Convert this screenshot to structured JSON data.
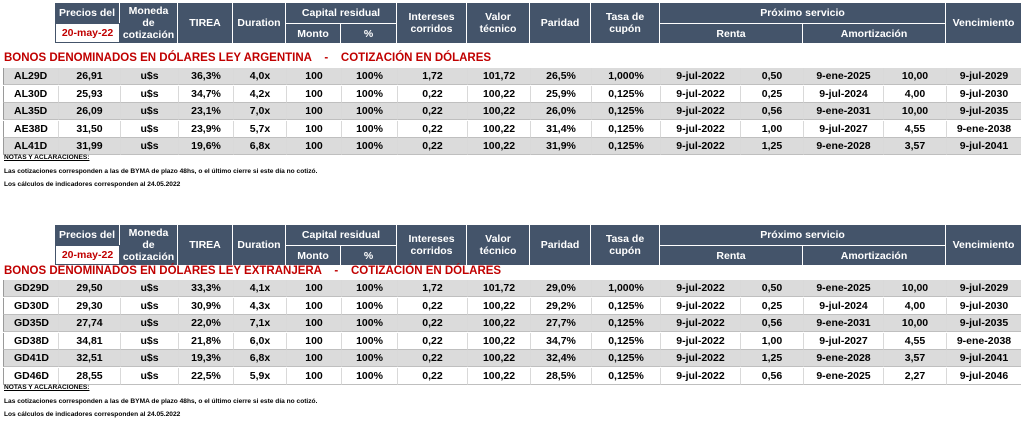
{
  "header": {
    "precios_del": "Precios del",
    "date": "20-may-22",
    "moneda": "Moneda de cotización",
    "tirea": "TIREA",
    "duration": "Duration",
    "capital_residual": "Capital residual",
    "monto": "Monto",
    "pct": "%",
    "intereses": "Intereses corridos",
    "valor_tecnico": "Valor técnico",
    "paridad": "Paridad",
    "tasa_cupon": "Tasa de cupón",
    "proximo_servicio": "Próximo servicio",
    "renta": "Renta",
    "amortizacion": "Amortización",
    "vencimiento": "Vencimiento"
  },
  "sections": [
    {
      "title": "BONOS DENOMINADOS EN DÓLARES LEY ARGENTINA    -    COTIZACIÓN EN DÓLARES",
      "rows": [
        [
          "AL29D",
          "26,91",
          "u$s",
          "36,3%",
          "4,0x",
          "100",
          "100%",
          "1,72",
          "101,72",
          "26,5%",
          "1,000%",
          "9-jul-2022",
          "0,50",
          "9-ene-2025",
          "10,00",
          "9-jul-2029"
        ],
        [
          "AL30D",
          "25,93",
          "u$s",
          "34,7%",
          "4,2x",
          "100",
          "100%",
          "0,22",
          "100,22",
          "25,9%",
          "0,125%",
          "9-jul-2022",
          "0,25",
          "9-jul-2024",
          "4,00",
          "9-jul-2030"
        ],
        [
          "AL35D",
          "26,09",
          "u$s",
          "23,1%",
          "7,0x",
          "100",
          "100%",
          "0,22",
          "100,22",
          "26,0%",
          "0,125%",
          "9-jul-2022",
          "0,56",
          "9-ene-2031",
          "10,00",
          "9-jul-2035"
        ],
        [
          "AE38D",
          "31,50",
          "u$s",
          "23,9%",
          "5,7x",
          "100",
          "100%",
          "0,22",
          "100,22",
          "31,4%",
          "0,125%",
          "9-jul-2022",
          "1,00",
          "9-jul-2027",
          "4,55",
          "9-ene-2038"
        ],
        [
          "AL41D",
          "31,99",
          "u$s",
          "19,6%",
          "6,8x",
          "100",
          "100%",
          "0,22",
          "100,22",
          "31,9%",
          "0,125%",
          "9-jul-2022",
          "1,25",
          "9-ene-2028",
          "3,57",
          "9-jul-2041"
        ]
      ],
      "notes_title": "NOTAS Y ACLARACIONES:",
      "note1": "Las cotizaciones corresponden a las de BYMA de plazo 48hs, o el último cierre si este día no cotizó.",
      "note2": "Los cálculos de indicadores corresponden al 24.05.2022"
    },
    {
      "title": "BONOS DENOMINADOS EN DÓLARES LEY EXTRANJERA    -    COTIZACIÓN EN DÓLARES",
      "rows": [
        [
          "GD29D",
          "29,50",
          "u$s",
          "33,3%",
          "4,1x",
          "100",
          "100%",
          "1,72",
          "101,72",
          "29,0%",
          "1,000%",
          "9-jul-2022",
          "0,50",
          "9-ene-2025",
          "10,00",
          "9-jul-2029"
        ],
        [
          "GD30D",
          "29,30",
          "u$s",
          "30,9%",
          "4,3x",
          "100",
          "100%",
          "0,22",
          "100,22",
          "29,2%",
          "0,125%",
          "9-jul-2022",
          "0,25",
          "9-jul-2024",
          "4,00",
          "9-jul-2030"
        ],
        [
          "GD35D",
          "27,74",
          "u$s",
          "22,0%",
          "7,1x",
          "100",
          "100%",
          "0,22",
          "100,22",
          "27,7%",
          "0,125%",
          "9-jul-2022",
          "0,56",
          "9-ene-2031",
          "10,00",
          "9-jul-2035"
        ],
        [
          "GD38D",
          "34,81",
          "u$s",
          "21,8%",
          "6,0x",
          "100",
          "100%",
          "0,22",
          "100,22",
          "34,7%",
          "0,125%",
          "9-jul-2022",
          "1,00",
          "9-jul-2027",
          "4,55",
          "9-ene-2038"
        ],
        [
          "GD41D",
          "32,51",
          "u$s",
          "19,3%",
          "6,8x",
          "100",
          "100%",
          "0,22",
          "100,22",
          "32,4%",
          "0,125%",
          "9-jul-2022",
          "1,25",
          "9-ene-2028",
          "3,57",
          "9-jul-2041"
        ],
        [
          "GD46D",
          "28,55",
          "u$s",
          "22,5%",
          "5,9x",
          "100",
          "100%",
          "0,22",
          "100,22",
          "28,5%",
          "0,125%",
          "9-jul-2022",
          "0,56",
          "9-ene-2025",
          "2,27",
          "9-jul-2046"
        ]
      ],
      "notes_title": "NOTAS Y ACLARACIONES:",
      "note1": "Las cotizaciones corresponden a las de BYMA de plazo 48hs, o el último cierre si este día no cotizó.",
      "note2": "Los cálculos de indicadores corresponden al 24.05.2022"
    }
  ]
}
